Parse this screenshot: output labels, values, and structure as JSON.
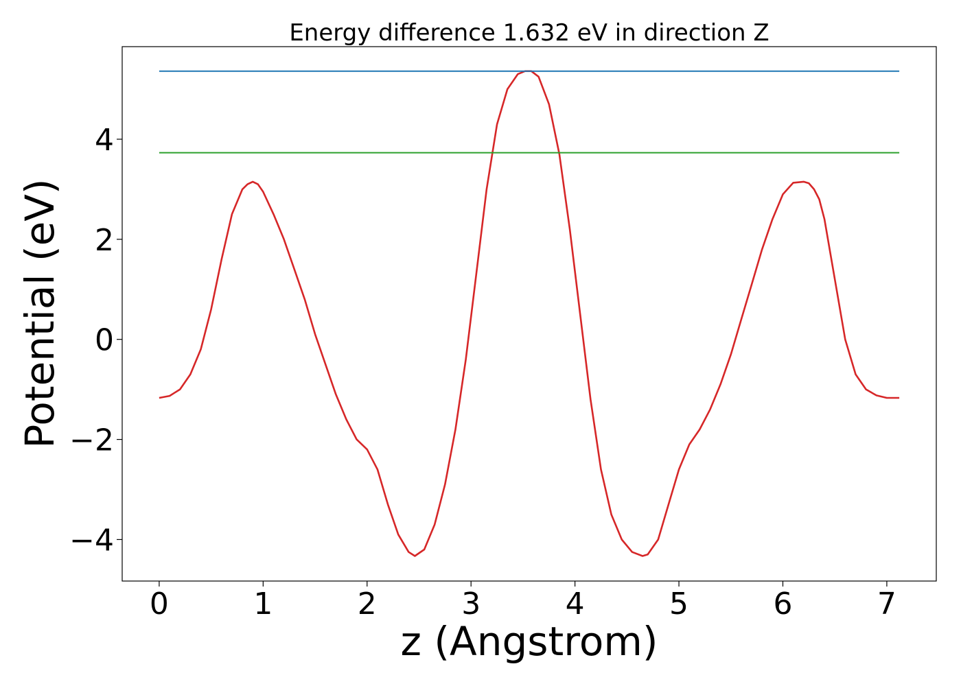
{
  "chart_data": {
    "type": "line",
    "title": "Energy difference 1.632 eV in direction Z",
    "xlabel": "z (Angstrom)",
    "ylabel": "Potential (eV)",
    "xlim": [
      -0.356,
      7.476
    ],
    "ylim": [
      -4.83,
      5.85
    ],
    "xticks": [
      0,
      1,
      2,
      3,
      4,
      5,
      6,
      7
    ],
    "yticks": [
      -4,
      -2,
      0,
      2,
      4
    ],
    "xtick_labels": [
      "0",
      "1",
      "2",
      "3",
      "4",
      "5",
      "6",
      "7"
    ],
    "ytick_labels": [
      "−4",
      "−2",
      "0",
      "2",
      "4"
    ],
    "grid": false,
    "series": [
      {
        "color": "#d62728",
        "x": [
          0.0,
          0.1,
          0.2,
          0.3,
          0.4,
          0.5,
          0.6,
          0.7,
          0.8,
          0.85,
          0.9,
          0.95,
          1.0,
          1.1,
          1.2,
          1.3,
          1.4,
          1.5,
          1.6,
          1.7,
          1.8,
          1.9,
          2.0,
          2.1,
          2.2,
          2.3,
          2.4,
          2.46,
          2.55,
          2.65,
          2.75,
          2.85,
          2.95,
          3.05,
          3.15,
          3.25,
          3.35,
          3.45,
          3.52,
          3.58,
          3.65,
          3.75,
          3.85,
          3.95,
          4.05,
          4.15,
          4.25,
          4.35,
          4.45,
          4.55,
          4.65,
          4.7,
          4.8,
          4.9,
          5.0,
          5.1,
          5.2,
          5.3,
          5.4,
          5.5,
          5.6,
          5.7,
          5.8,
          5.9,
          6.0,
          6.1,
          6.2,
          6.25,
          6.3,
          6.35,
          6.4,
          6.5,
          6.6,
          6.7,
          6.8,
          6.9,
          7.0,
          7.12
        ],
        "y": [
          -1.17,
          -1.13,
          -1.0,
          -0.7,
          -0.2,
          0.6,
          1.6,
          2.5,
          3.0,
          3.1,
          3.15,
          3.1,
          2.95,
          2.5,
          2.0,
          1.4,
          0.8,
          0.1,
          -0.5,
          -1.1,
          -1.6,
          -2.0,
          -2.2,
          -2.6,
          -3.3,
          -3.9,
          -4.25,
          -4.33,
          -4.2,
          -3.7,
          -2.9,
          -1.8,
          -0.4,
          1.3,
          3.0,
          4.3,
          5.0,
          5.3,
          5.36,
          5.36,
          5.25,
          4.7,
          3.7,
          2.2,
          0.5,
          -1.2,
          -2.6,
          -3.5,
          -4.0,
          -4.25,
          -4.33,
          -4.3,
          -4.0,
          -3.3,
          -2.6,
          -2.1,
          -1.8,
          -1.4,
          -0.9,
          -0.3,
          0.4,
          1.1,
          1.8,
          2.4,
          2.9,
          3.13,
          3.15,
          3.12,
          3.0,
          2.8,
          2.4,
          1.2,
          0.0,
          -0.7,
          -1.0,
          -1.12,
          -1.17,
          -1.17
        ]
      },
      {
        "color": "#1f77b4",
        "x": [
          0.0,
          7.12
        ],
        "y": [
          5.36,
          5.36
        ]
      },
      {
        "color": "#2ca02c",
        "x": [
          0.0,
          7.12
        ],
        "y": [
          3.73,
          3.73
        ]
      }
    ]
  }
}
